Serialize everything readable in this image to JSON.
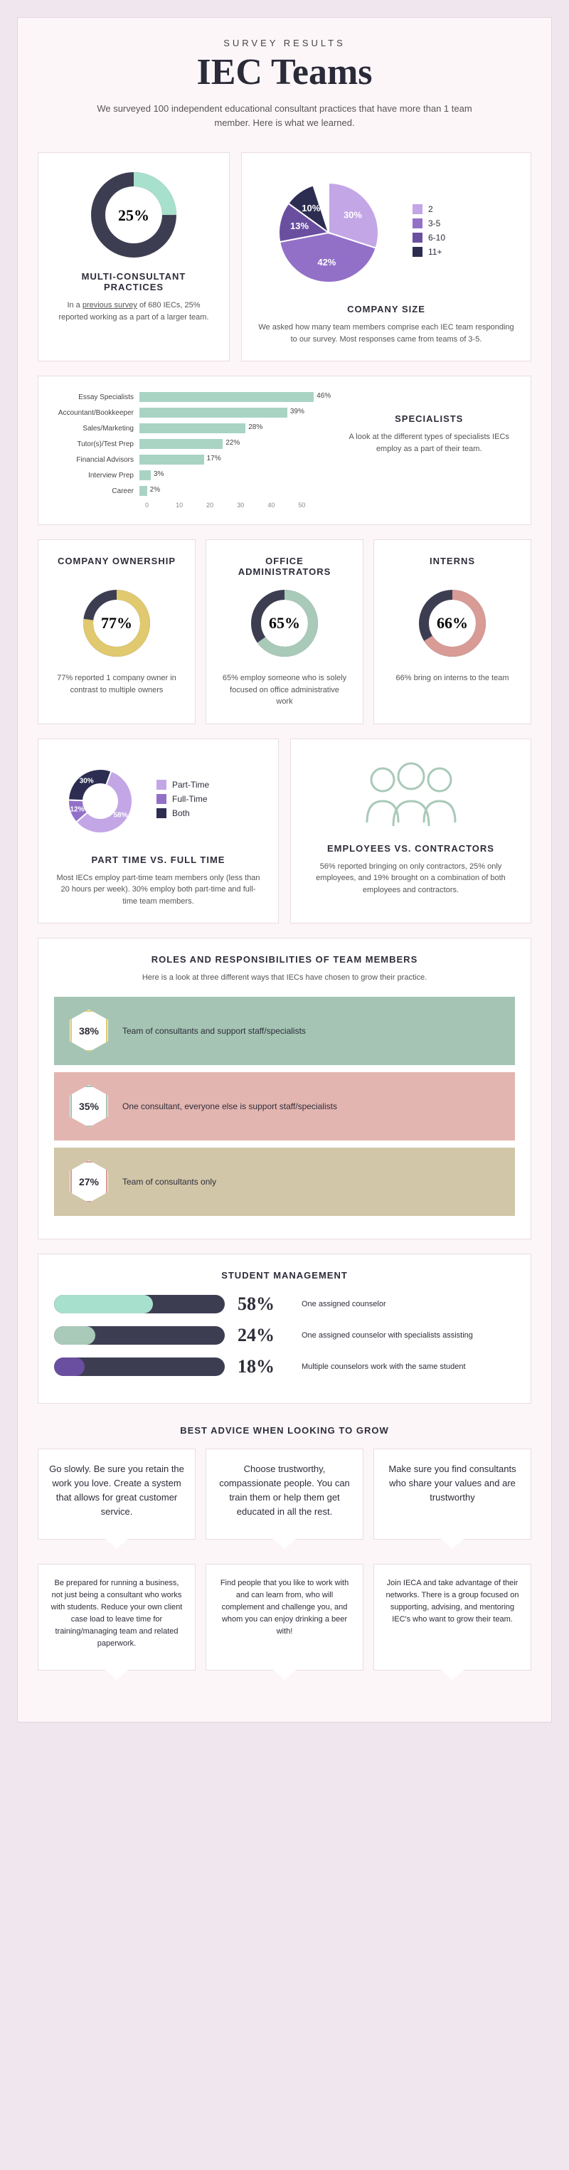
{
  "header": {
    "sub": "SURVEY RESULTS",
    "title": "IEC Teams",
    "desc": "We surveyed 100 independent educational consultant practices that have more than 1 team member. Here is what we learned."
  },
  "colors": {
    "purple_light": "#c3a6e6",
    "purple_mid": "#9370c8",
    "purple_dark": "#6a4fa0",
    "navy": "#2d2d52",
    "mint": "#a7e0cc",
    "sage": "#a9c9b9",
    "rose": "#d89b95",
    "gold": "#e0c96e",
    "slate": "#3d3d52",
    "tan": "#d1c6a8",
    "green_band": "#a5c4b3",
    "pink_band": "#e3b5b0"
  },
  "multi": {
    "pct": 25,
    "pct_label": "25%",
    "title": "MULTI-CONSULTANT PRACTICES",
    "desc_pre": "In a ",
    "desc_link": "previous survey",
    "desc_post": " of 680 IECs, 25% reported working as a part of a larger team."
  },
  "company_size": {
    "title": "COMPANY SIZE",
    "desc": "We asked how many team members comprise each IEC team responding to our survey. Most responses came from teams of 3-5.",
    "slices": [
      {
        "label": "2",
        "pct": 30,
        "color": "#c3a6e6",
        "text": "30%"
      },
      {
        "label": "3-5",
        "pct": 42,
        "color": "#9370c8",
        "text": "42%"
      },
      {
        "label": "6-10",
        "pct": 13,
        "color": "#6a4fa0",
        "text": "13%"
      },
      {
        "label": "11+",
        "pct": 10,
        "color": "#2d2d52",
        "text": "10%"
      }
    ]
  },
  "specialists": {
    "title": "SPECIALISTS",
    "desc": "A look at the different types of specialists IECs employ as a part of their team.",
    "max": 50,
    "axis": [
      "0",
      "10",
      "20",
      "30",
      "40",
      "50"
    ],
    "bars": [
      {
        "label": "Essay Specialists",
        "val": 46,
        "text": "46%"
      },
      {
        "label": "Accountant/Bookkeeper",
        "val": 39,
        "text": "39%"
      },
      {
        "label": "Sales/Marketing",
        "val": 28,
        "text": "28%"
      },
      {
        "label": "Tutor(s)/Test Prep",
        "val": 22,
        "text": "22%"
      },
      {
        "label": "Financial Advisors",
        "val": 17,
        "text": "17%"
      },
      {
        "label": "Interview Prep",
        "val": 3,
        "text": "3%"
      },
      {
        "label": "Career",
        "val": 2,
        "text": "2%"
      }
    ]
  },
  "three_donuts": [
    {
      "title": "COMPANY OWNERSHIP",
      "pct": 77,
      "pct_label": "77%",
      "color": "#e0c96e",
      "desc": "77% reported 1 company owner in contrast to multiple owners"
    },
    {
      "title": "OFFICE ADMINISTRATORS",
      "pct": 65,
      "pct_label": "65%",
      "color": "#a9c9b9",
      "desc": "65% employ someone who is solely focused on office administrative work"
    },
    {
      "title": "INTERNS",
      "pct": 66,
      "pct_label": "66%",
      "color": "#d89b95",
      "desc": "66% bring on interns to the team"
    }
  ],
  "ptft": {
    "title": "PART TIME VS. FULL TIME",
    "desc": "Most IECs employ part-time team members only (less than 20 hours per week). 30% employ both part-time and full-time team members.",
    "slices": [
      {
        "label": "Part-Time",
        "pct": 58,
        "color": "#c3a6e6",
        "text": "58%"
      },
      {
        "label": "Full-Time",
        "pct": 12,
        "color": "#9370c8",
        "text": "12%"
      },
      {
        "label": "Both",
        "pct": 30,
        "color": "#2d2d52",
        "text": "30%"
      }
    ]
  },
  "emp_con": {
    "title": "EMPLOYEES VS. CONTRACTORS",
    "desc": "56% reported bringing on only contractors, 25% only employees, and 19% brought on a combination of both employees and contractors."
  },
  "roles": {
    "title": "ROLES AND RESPONSIBILITIES OF TEAM MEMBERS",
    "sub": "Here is a look at three different ways that IECs have chosen to grow their practice.",
    "rows": [
      {
        "pct": "38%",
        "text": "Team of consultants and support staff/specialists",
        "bg": "#a5c4b3",
        "hex_border": "#e0c96e"
      },
      {
        "pct": "35%",
        "text": "One consultant, everyone else is support staff/specialists",
        "bg": "#e3b5b0",
        "hex_border": "#a5c4b3"
      },
      {
        "pct": "27%",
        "text": "Team of consultants only",
        "bg": "#d1c6a8",
        "hex_border": "#d89b95"
      }
    ]
  },
  "student_mgmt": {
    "title": "STUDENT MANAGEMENT",
    "rows": [
      {
        "pct": 58,
        "pct_label": "58%",
        "label": "One assigned counselor",
        "color": "#a7e0cc"
      },
      {
        "pct": 24,
        "pct_label": "24%",
        "label": "One assigned counselor with specialists assisting",
        "color": "#a9c9b9"
      },
      {
        "pct": 18,
        "pct_label": "18%",
        "label": "Multiple counselors work with the same student",
        "color": "#6a4fa0"
      }
    ]
  },
  "advice": {
    "title": "BEST ADVICE WHEN LOOKING TO GROW",
    "top": [
      "Go slowly. Be sure you retain the work you love. Create a system that allows for great customer service.",
      "Choose trustworthy, compassionate people. You can train them or help them get educated in all the rest.",
      "Make sure you find consultants who share your values and are trustworthy"
    ],
    "bottom": [
      "Be prepared for running a business, not just being a consultant who works with students. Reduce your own client case load to leave time for training/managing team and related paperwork.",
      "Find people that you like to work with and can learn from, who will complement and challenge you, and whom you can enjoy drinking a beer with!",
      "Join IECA and take advantage of their networks. There is a group focused on supporting, advising, and mentoring IEC's who want to grow their team."
    ]
  }
}
